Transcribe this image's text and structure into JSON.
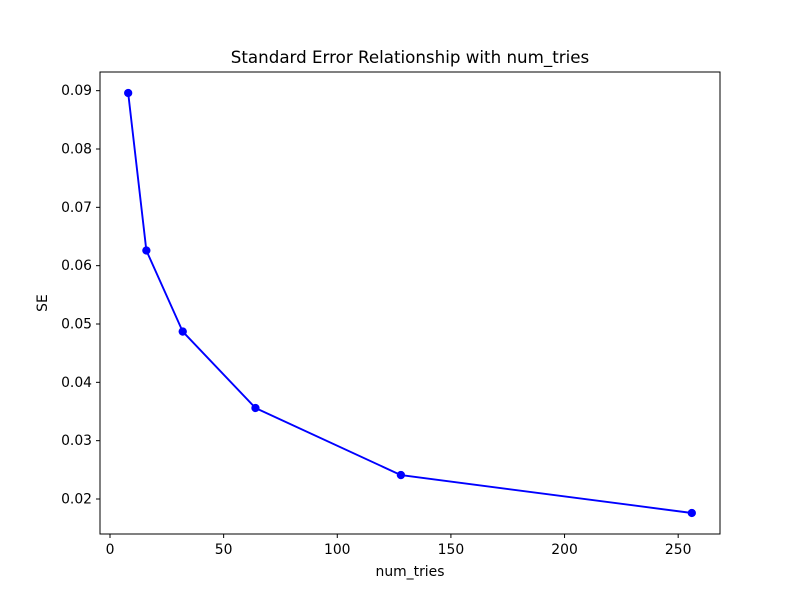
{
  "chart_data": {
    "type": "line",
    "title": "Standard Error Relationship with num_tries",
    "xlabel": "num_tries",
    "ylabel": "SE",
    "x": [
      8,
      16,
      32,
      64,
      128,
      256
    ],
    "y": [
      0.0896,
      0.0626,
      0.0487,
      0.0356,
      0.0241,
      0.0176
    ],
    "xlim": [
      -4.4,
      268.4
    ],
    "ylim": [
      0.014,
      0.0932
    ],
    "xticks": [
      0,
      50,
      100,
      150,
      200,
      250
    ],
    "xtick_labels": [
      "0",
      "50",
      "100",
      "150",
      "200",
      "250"
    ],
    "yticks": [
      0.02,
      0.03,
      0.04,
      0.05,
      0.06,
      0.07,
      0.08,
      0.09
    ],
    "ytick_labels": [
      "0.02",
      "0.03",
      "0.04",
      "0.05",
      "0.06",
      "0.07",
      "0.08",
      "0.09"
    ],
    "line_color": "#0000ff",
    "marker": "o",
    "grid": false,
    "legend": null,
    "background_color": "#ffffff",
    "spine_color": "#000000"
  }
}
